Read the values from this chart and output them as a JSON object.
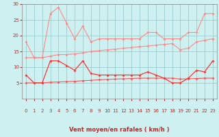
{
  "xlabel": "Vent moyen/en rafales ( km/h )",
  "bg_color": "#cff0f0",
  "grid_color": "#99cccc",
  "hours": [
    0,
    1,
    2,
    3,
    4,
    5,
    6,
    7,
    8,
    9,
    10,
    11,
    12,
    13,
    14,
    15,
    16,
    17,
    18,
    19,
    20,
    21,
    22,
    23
  ],
  "rafales": [
    18,
    13,
    13,
    27,
    29,
    24,
    19,
    23,
    18,
    19,
    19,
    19,
    19,
    19,
    19,
    21,
    21,
    19,
    19,
    19,
    21,
    21,
    27,
    27
  ],
  "moy_high": [
    13,
    13,
    13,
    13.5,
    14,
    14,
    14.2,
    14.5,
    15,
    15.2,
    15.5,
    15.7,
    16,
    16.2,
    16.5,
    16.7,
    17,
    17.2,
    17.5,
    15.5,
    16,
    18,
    18.5,
    19
  ],
  "vent_moy": [
    7.5,
    5,
    5,
    12,
    12,
    10.5,
    9,
    12,
    8,
    7.5,
    7.5,
    7.5,
    7.5,
    7.5,
    7.5,
    8.5,
    7.5,
    6.5,
    5,
    5,
    6.5,
    9,
    8.5,
    12
  ],
  "moy_low": [
    5,
    5,
    5,
    5.2,
    5.3,
    5.4,
    5.5,
    5.7,
    5.8,
    6.0,
    6.1,
    6.2,
    6.3,
    6.4,
    6.5,
    6.5,
    6.5,
    6.5,
    6.5,
    6.2,
    6.3,
    6.4,
    6.5,
    6.5
  ],
  "wind_arrows": [
    "↳",
    "↘",
    "↓",
    "↳",
    "↳",
    "↳",
    "↳",
    "↳",
    "↓",
    "↳",
    "↓",
    "↳",
    "↓",
    "↳",
    "↳",
    "↳",
    "↳",
    "↳",
    "↳",
    "↳",
    "↓",
    "↳",
    "↓",
    "↓"
  ],
  "color_rafales": "#ff8888",
  "color_moy_high": "#ffaaaa",
  "color_vent_moy": "#ff3333",
  "color_moy_low": "#ff5555",
  "ymin": 0,
  "ymax": 30,
  "xmin": 0,
  "xmax": 23,
  "yticks": [
    5,
    10,
    15,
    20,
    25,
    30
  ],
  "tick_fontsize": 5,
  "xlabel_fontsize": 6
}
